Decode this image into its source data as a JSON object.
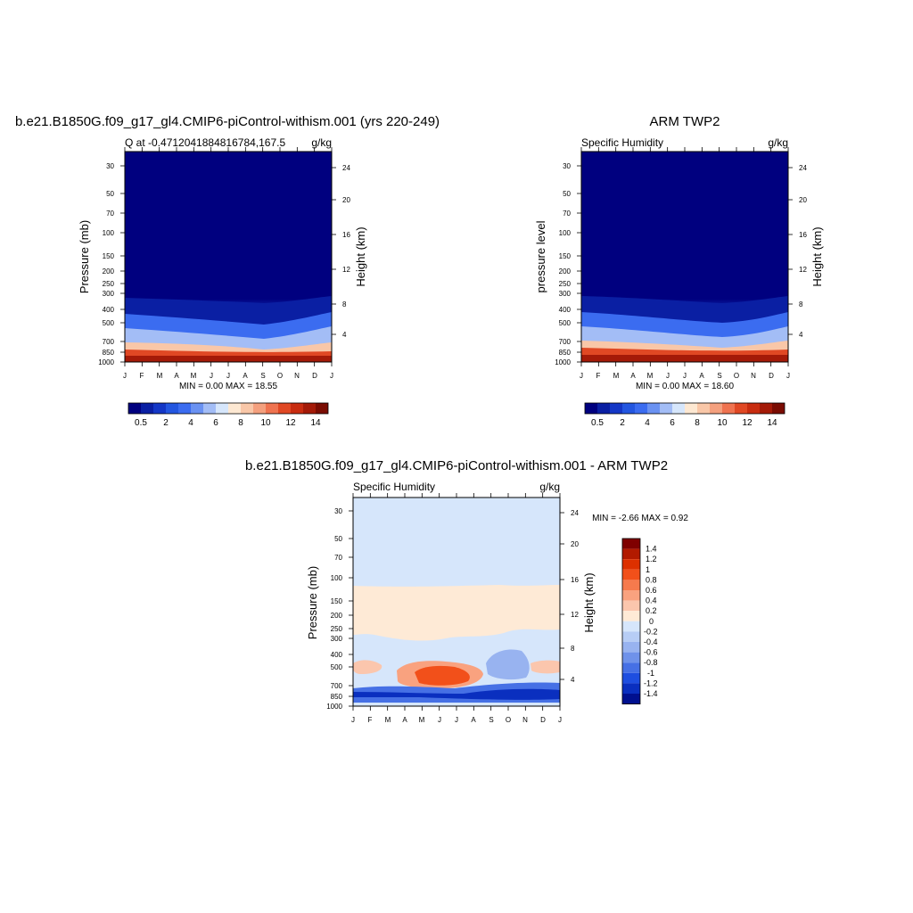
{
  "chart_data": [
    {
      "type": "heatmap",
      "id": "model",
      "title": "b.e21.B1850G.f09_g17_gl4.CMIP6-piControl-withism.001 (yrs 220-249)",
      "left_string": "Q at -0.4712041884816784,167.5",
      "right_string": "g/kg",
      "ylabel": "Pressure (mb)",
      "ylabel_right": "Height (km)",
      "x_ticks": [
        "J",
        "F",
        "M",
        "A",
        "M",
        "J",
        "J",
        "A",
        "S",
        "O",
        "N",
        "D",
        "J"
      ],
      "y_ticks": [
        "30",
        "50",
        "70",
        "100",
        "150",
        "200",
        "250",
        "300",
        "400",
        "500",
        "700",
        "850",
        "1000"
      ],
      "y_ticks_right": [
        "24",
        "20",
        "16",
        "12",
        "8",
        "4"
      ],
      "stats": "MIN =   0.00 MAX =  18.55",
      "colorbar_labels": [
        "0.5",
        "2",
        "4",
        "6",
        "8",
        "10",
        "12",
        "14"
      ]
    },
    {
      "type": "heatmap",
      "id": "obs",
      "title": "ARM TWP2",
      "left_string": "Specific Humidity",
      "right_string": "g/kg",
      "ylabel": "pressure level",
      "ylabel_right": "Height (km)",
      "x_ticks": [
        "J",
        "F",
        "M",
        "A",
        "M",
        "J",
        "J",
        "A",
        "S",
        "O",
        "N",
        "D",
        "J"
      ],
      "y_ticks": [
        "30",
        "50",
        "70",
        "100",
        "150",
        "200",
        "250",
        "300",
        "400",
        "500",
        "700",
        "850",
        "1000"
      ],
      "y_ticks_right": [
        "24",
        "20",
        "16",
        "12",
        "8",
        "4"
      ],
      "stats": "MIN =   0.00 MAX =  18.60",
      "colorbar_labels": [
        "0.5",
        "2",
        "4",
        "6",
        "8",
        "10",
        "12",
        "14"
      ]
    },
    {
      "type": "heatmap",
      "id": "diff",
      "title": "b.e21.B1850G.f09_g17_gl4.CMIP6-piControl-withism.001 - ARM TWP2",
      "left_string": "Specific Humidity",
      "right_string": "g/kg",
      "ylabel": "Pressure (mb)",
      "ylabel_right": "Height (km)",
      "x_ticks": [
        "J",
        "F",
        "M",
        "A",
        "M",
        "J",
        "J",
        "A",
        "S",
        "O",
        "N",
        "D",
        "J"
      ],
      "y_ticks": [
        "30",
        "50",
        "70",
        "100",
        "150",
        "200",
        "250",
        "300",
        "400",
        "500",
        "700",
        "850",
        "1000"
      ],
      "y_ticks_right": [
        "24",
        "20",
        "16",
        "12",
        "8",
        "4"
      ],
      "stats": "MIN =  -2.66 MAX =   0.92",
      "colorbar_labels": [
        "1.4",
        "1.2",
        "1",
        "0.8",
        "0.6",
        "0.4",
        "0.2",
        "0",
        "-0.2",
        "-0.4",
        "-0.6",
        "-0.8",
        "-1",
        "-1.2",
        "-1.4"
      ]
    }
  ],
  "colors": {
    "frame": "#000000",
    "seq_palette": [
      "#00007f",
      "#0a1fa3",
      "#1437c6",
      "#2356e0",
      "#3b6cf0",
      "#6a92f2",
      "#a3bdf6",
      "#d6e6fb",
      "#fde8d2",
      "#f9c7a8",
      "#f4a07e",
      "#ef7350",
      "#e04824",
      "#c82c10",
      "#a41a08",
      "#7a0c02"
    ],
    "div_palette": [
      "#7f0000",
      "#b21a00",
      "#dd3000",
      "#f2501a",
      "#f67a4d",
      "#f9a27f",
      "#fbc6ad",
      "#feead6",
      "#d6e6fb",
      "#b7cdf5",
      "#98b3f0",
      "#6f92ea",
      "#4670e5",
      "#1e4ee0",
      "#0a2fbf",
      "#00108f"
    ]
  }
}
